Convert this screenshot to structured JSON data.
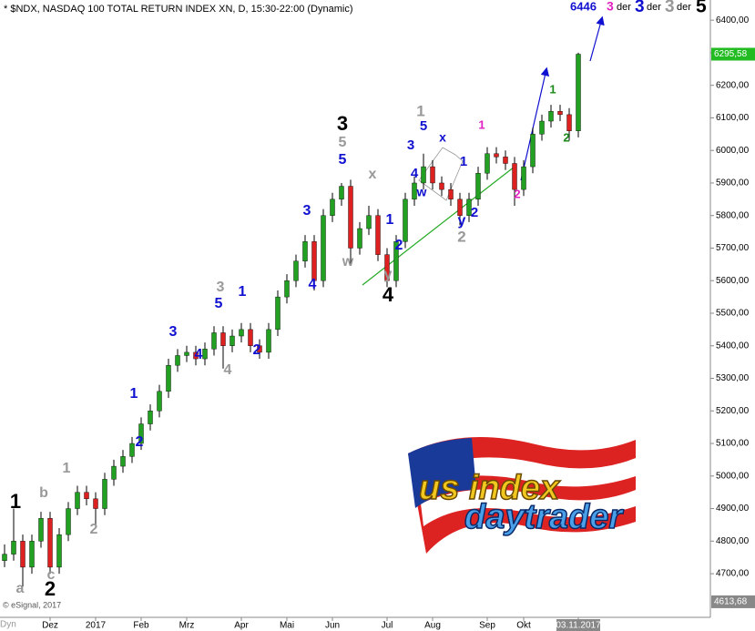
{
  "chart_data": {
    "type": "candlestick",
    "title": "* $NDX, NASDAQ 100 TOTAL RETURN INDEX XN, D, 15:30-22:00 (Dynamic)",
    "copyright": "© eSignal, 2017",
    "corner_label": "Dyn",
    "categories": [
      null,
      null,
      null,
      null,
      null,
      "Dez",
      null,
      null,
      null,
      null,
      "2017",
      null,
      null,
      null,
      null,
      "Feb",
      null,
      null,
      null,
      null,
      "Mrz",
      null,
      null,
      null,
      null,
      null,
      "Apr",
      null,
      null,
      null,
      null,
      "Mai",
      null,
      null,
      null,
      null,
      "Jun",
      null,
      null,
      null,
      null,
      null,
      "Jul",
      null,
      null,
      null,
      null,
      "Aug",
      null,
      null,
      null,
      null,
      null,
      "Sep",
      null,
      null,
      null,
      "Okt",
      null,
      null,
      null,
      null,
      null,
      "03.11.2017"
    ],
    "open": [
      4740,
      4760,
      4800,
      4720,
      4800,
      4870,
      4720,
      4820,
      4900,
      4950,
      4930,
      4900,
      4990,
      5030,
      5060,
      5100,
      5160,
      5200,
      5260,
      5340,
      5370,
      5380,
      5360,
      5390,
      5440,
      5400,
      5430,
      5450,
      5400,
      5380,
      5450,
      5550,
      5600,
      5660,
      5720,
      5600,
      5800,
      5850,
      5890,
      5700,
      5760,
      5800,
      5680,
      5600,
      5720,
      5850,
      5900,
      5950,
      5900,
      5880,
      5850,
      5800,
      5850,
      5930,
      5990,
      5980,
      5960,
      5880,
      5950,
      6050,
      6090,
      6120,
      6110,
      6060
    ],
    "high": [
      4790,
      4900,
      4820,
      4820,
      4890,
      4890,
      4840,
      4920,
      4970,
      4970,
      4950,
      5010,
      5050,
      5080,
      5120,
      5180,
      5220,
      5280,
      5360,
      5390,
      5400,
      5400,
      5410,
      5460,
      5460,
      5450,
      5470,
      5470,
      5420,
      5470,
      5570,
      5620,
      5680,
      5740,
      5740,
      5820,
      5870,
      5900,
      5910,
      5780,
      5830,
      5820,
      5700,
      5740,
      5870,
      5920,
      5990,
      5970,
      5920,
      5900,
      5870,
      5870,
      5950,
      6010,
      6010,
      6000,
      5980,
      5970,
      6070,
      6110,
      6140,
      6140,
      6130,
      6300
    ],
    "low": [
      4720,
      4740,
      4660,
      4700,
      4780,
      4700,
      4700,
      4800,
      4880,
      4910,
      4840,
      4880,
      4970,
      5010,
      5040,
      5080,
      5140,
      5180,
      5240,
      5320,
      5350,
      5340,
      5340,
      5370,
      5330,
      5380,
      5410,
      5380,
      5360,
      5360,
      5430,
      5530,
      5580,
      5640,
      5570,
      5580,
      5780,
      5830,
      5650,
      5680,
      5740,
      5660,
      5580,
      5580,
      5700,
      5830,
      5880,
      5880,
      5860,
      5830,
      5770,
      5780,
      5830,
      5910,
      5960,
      5940,
      5830,
      5860,
      5930,
      6030,
      6070,
      6090,
      6030,
      6040
    ],
    "close": [
      4760,
      4800,
      4720,
      4800,
      4870,
      4720,
      4820,
      4900,
      4950,
      4930,
      4900,
      4990,
      5030,
      5060,
      5100,
      5160,
      5200,
      5260,
      5340,
      5370,
      5380,
      5360,
      5390,
      5440,
      5400,
      5430,
      5450,
      5400,
      5380,
      5450,
      5550,
      5600,
      5660,
      5720,
      5600,
      5800,
      5850,
      5890,
      5700,
      5760,
      5800,
      5680,
      5600,
      5720,
      5850,
      5900,
      5950,
      5900,
      5880,
      5850,
      5800,
      5850,
      5930,
      5990,
      5980,
      5960,
      5880,
      5950,
      6050,
      6090,
      6120,
      6110,
      6060,
      6295.58
    ],
    "up_color": "#22a022",
    "down_color": "#dd2020",
    "ylim": [
      4524,
      6462
    ],
    "yticks": [
      {
        "value": 4700,
        "label": "4700,00"
      },
      {
        "value": 4800,
        "label": "4800,00"
      },
      {
        "value": 4900,
        "label": "4900,00"
      },
      {
        "value": 5000,
        "label": "5000,00"
      },
      {
        "value": 5100,
        "label": "5100,00"
      },
      {
        "value": 5200,
        "label": "5200,00"
      },
      {
        "value": 5300,
        "label": "5300,00"
      },
      {
        "value": 5400,
        "label": "5400,00"
      },
      {
        "value": 5500,
        "label": "5500,00"
      },
      {
        "value": 5600,
        "label": "5600,00"
      },
      {
        "value": 5700,
        "label": "5700,00"
      },
      {
        "value": 5800,
        "label": "5800,00"
      },
      {
        "value": 5900,
        "label": "5900,00"
      },
      {
        "value": 6000,
        "label": "6000,00"
      },
      {
        "value": 6100,
        "label": "6100,00"
      },
      {
        "value": 6200,
        "label": "6200,00"
      },
      {
        "value": 6300,
        "label": "6300,00"
      },
      {
        "value": 6400,
        "label": "6400,00"
      }
    ],
    "last_price": {
      "value": 6295.58,
      "label": "6295,58"
    },
    "low_price": {
      "value": 4613.68,
      "label": "4613,68"
    },
    "target_note": [
      {
        "label": "6446",
        "color": "#1010d0"
      },
      {
        "label": "3",
        "color": "#e020c0"
      },
      {
        "label": "der",
        "color": "#000000"
      },
      {
        "label": "3",
        "color": "#1010d0"
      },
      {
        "label": "der",
        "color": "#000000"
      },
      {
        "label": "3",
        "color": "#999999"
      },
      {
        "label": "der",
        "color": "#000000"
      },
      {
        "label": "5",
        "color": "#000000"
      }
    ],
    "annotations": [
      {
        "label": "1",
        "color": "#000000"
      },
      {
        "label": "2",
        "color": "#000000"
      },
      {
        "label": "a",
        "color": "#999999"
      },
      {
        "label": "b",
        "color": "#999999"
      },
      {
        "label": "c",
        "color": "#999999"
      },
      {
        "label": "1",
        "color": "#999999"
      },
      {
        "label": "2",
        "color": "#999999"
      },
      {
        "label": "1",
        "color": "#1010d0"
      },
      {
        "label": "2",
        "color": "#1010d0"
      },
      {
        "label": "3",
        "color": "#1010d0"
      },
      {
        "label": "4",
        "color": "#1010d0"
      },
      {
        "label": "3",
        "color": "#999999"
      },
      {
        "label": "5",
        "color": "#1010d0"
      },
      {
        "label": "4",
        "color": "#999999"
      },
      {
        "label": "1",
        "color": "#1010d0"
      },
      {
        "label": "2",
        "color": "#1010d0"
      },
      {
        "label": "3",
        "color": "#1010d0"
      },
      {
        "label": "4",
        "color": "#1010d0"
      },
      {
        "label": "3",
        "color": "#000000"
      },
      {
        "label": "5",
        "color": "#999999"
      },
      {
        "label": "5",
        "color": "#1010d0"
      },
      {
        "label": "x",
        "color": "#999999"
      },
      {
        "label": "w",
        "color": "#999999"
      },
      {
        "label": "1",
        "color": "#1010d0"
      },
      {
        "label": "2",
        "color": "#1010d0"
      },
      {
        "label": "y",
        "color": "#999999"
      },
      {
        "label": "4",
        "color": "#000000"
      },
      {
        "label": "1",
        "color": "#999999"
      },
      {
        "label": "5",
        "color": "#1010d0"
      },
      {
        "label": "3",
        "color": "#1010d0"
      },
      {
        "label": "x",
        "color": "#1010d0"
      },
      {
        "label": "4",
        "color": "#1010d0"
      },
      {
        "label": "w",
        "color": "#1010d0"
      },
      {
        "label": "1",
        "color": "#1010d0"
      },
      {
        "label": "y",
        "color": "#1010d0"
      },
      {
        "label": "2",
        "color": "#1010d0"
      },
      {
        "label": "2",
        "color": "#999999"
      },
      {
        "label": "1",
        "color": "#e020c0"
      },
      {
        "label": "2",
        "color": "#e020c0"
      },
      {
        "label": "1",
        "color": "#1a8a1a"
      },
      {
        "label": "2",
        "color": "#1a8a1a"
      }
    ],
    "logo": [
      "us index",
      "daytrader"
    ]
  }
}
